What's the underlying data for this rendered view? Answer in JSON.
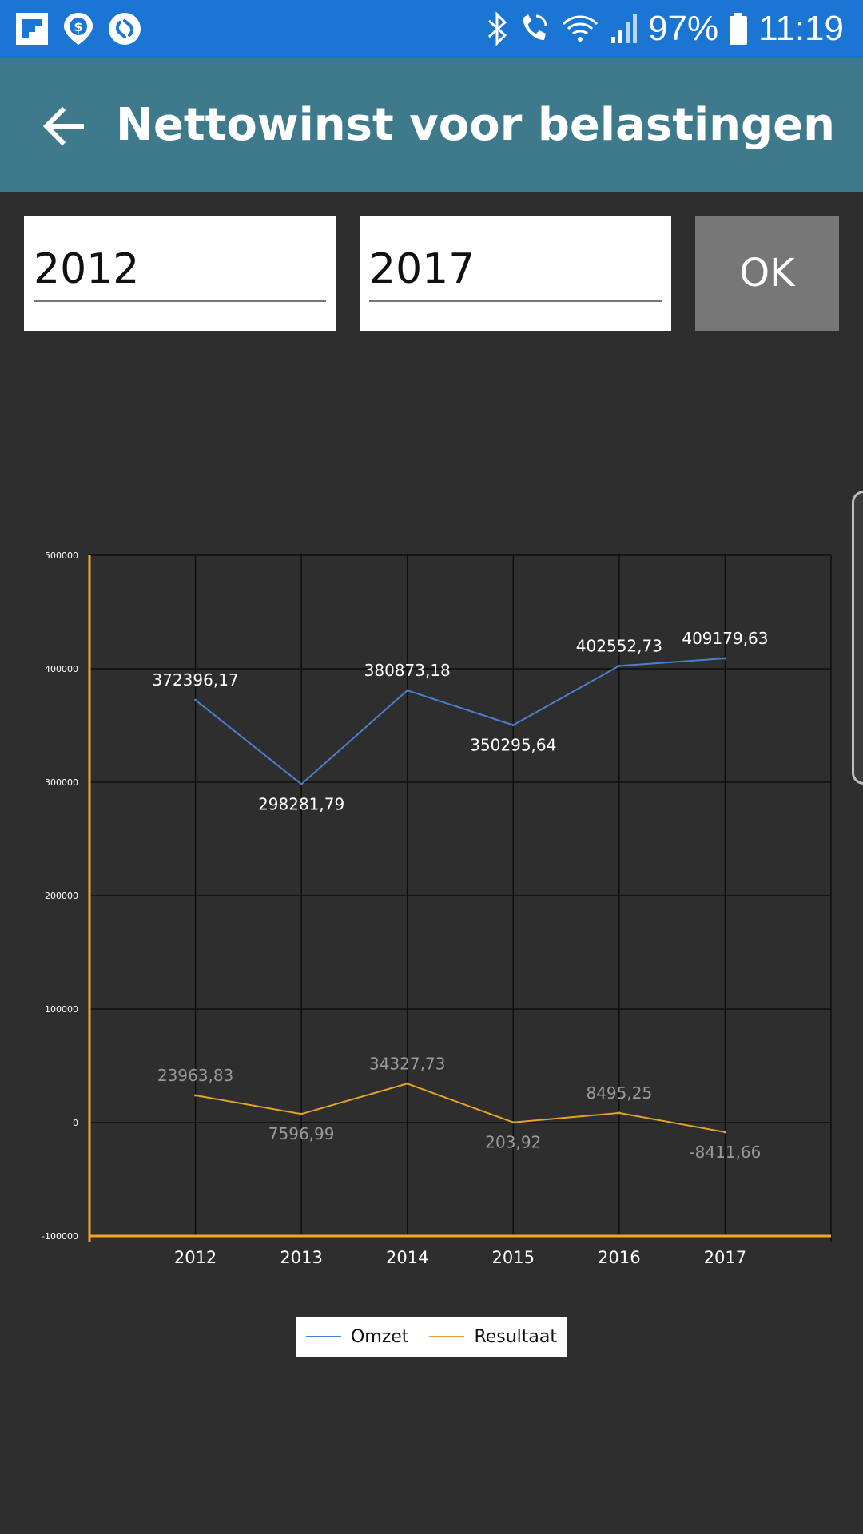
{
  "status_bar": {
    "battery": "97%",
    "time": "11:19",
    "left_icons": [
      "flipboard-icon",
      "money-pin-icon",
      "shazam-icon"
    ],
    "right_icons": [
      "bluetooth-icon",
      "wifi-call-icon",
      "wifi-icon",
      "signal-icon",
      "battery-icon"
    ]
  },
  "app_bar": {
    "title": "Nettowinst voor belastingen",
    "back_icon": "arrow-left-icon"
  },
  "filter": {
    "from_value": "2012",
    "to_value": "2017",
    "ok_label": "OK"
  },
  "colors": {
    "status_bar": "#1a76d2",
    "app_bar": "#3f7a8c",
    "background": "#2e2e2e",
    "omzet": "#4a7fd1",
    "resultaat": "#e6a328",
    "axis": "#f5a623"
  },
  "chart_data": {
    "type": "line",
    "categories": [
      "2012",
      "2013",
      "2014",
      "2015",
      "2016",
      "2017"
    ],
    "ylim": [
      -100000,
      500000
    ],
    "yticks": [
      500000,
      400000,
      300000,
      200000,
      100000,
      0,
      -100000
    ],
    "ytick_labels": [
      "500000",
      "400000",
      "300000",
      "200000",
      "100000",
      "0",
      "-100000"
    ],
    "grid": true,
    "legend_position": "bottom-center",
    "series": [
      {
        "name": "Omzet",
        "values": [
          372396.17,
          298281.79,
          380873.18,
          350295.64,
          402552.73,
          409179.63
        ],
        "labels": [
          "372396,17",
          "298281,79",
          "380873,18",
          "350295,64",
          "402552,73",
          "409179,63"
        ],
        "color": "#4a7fd1"
      },
      {
        "name": "Resultaat",
        "values": [
          23963.83,
          7596.99,
          34327.73,
          203.92,
          8495.25,
          -8411.66
        ],
        "labels": [
          "23963,83",
          "7596,99",
          "34327,73",
          "203,92",
          "8495,25",
          "-8411,66"
        ],
        "color": "#e6a328"
      }
    ]
  }
}
